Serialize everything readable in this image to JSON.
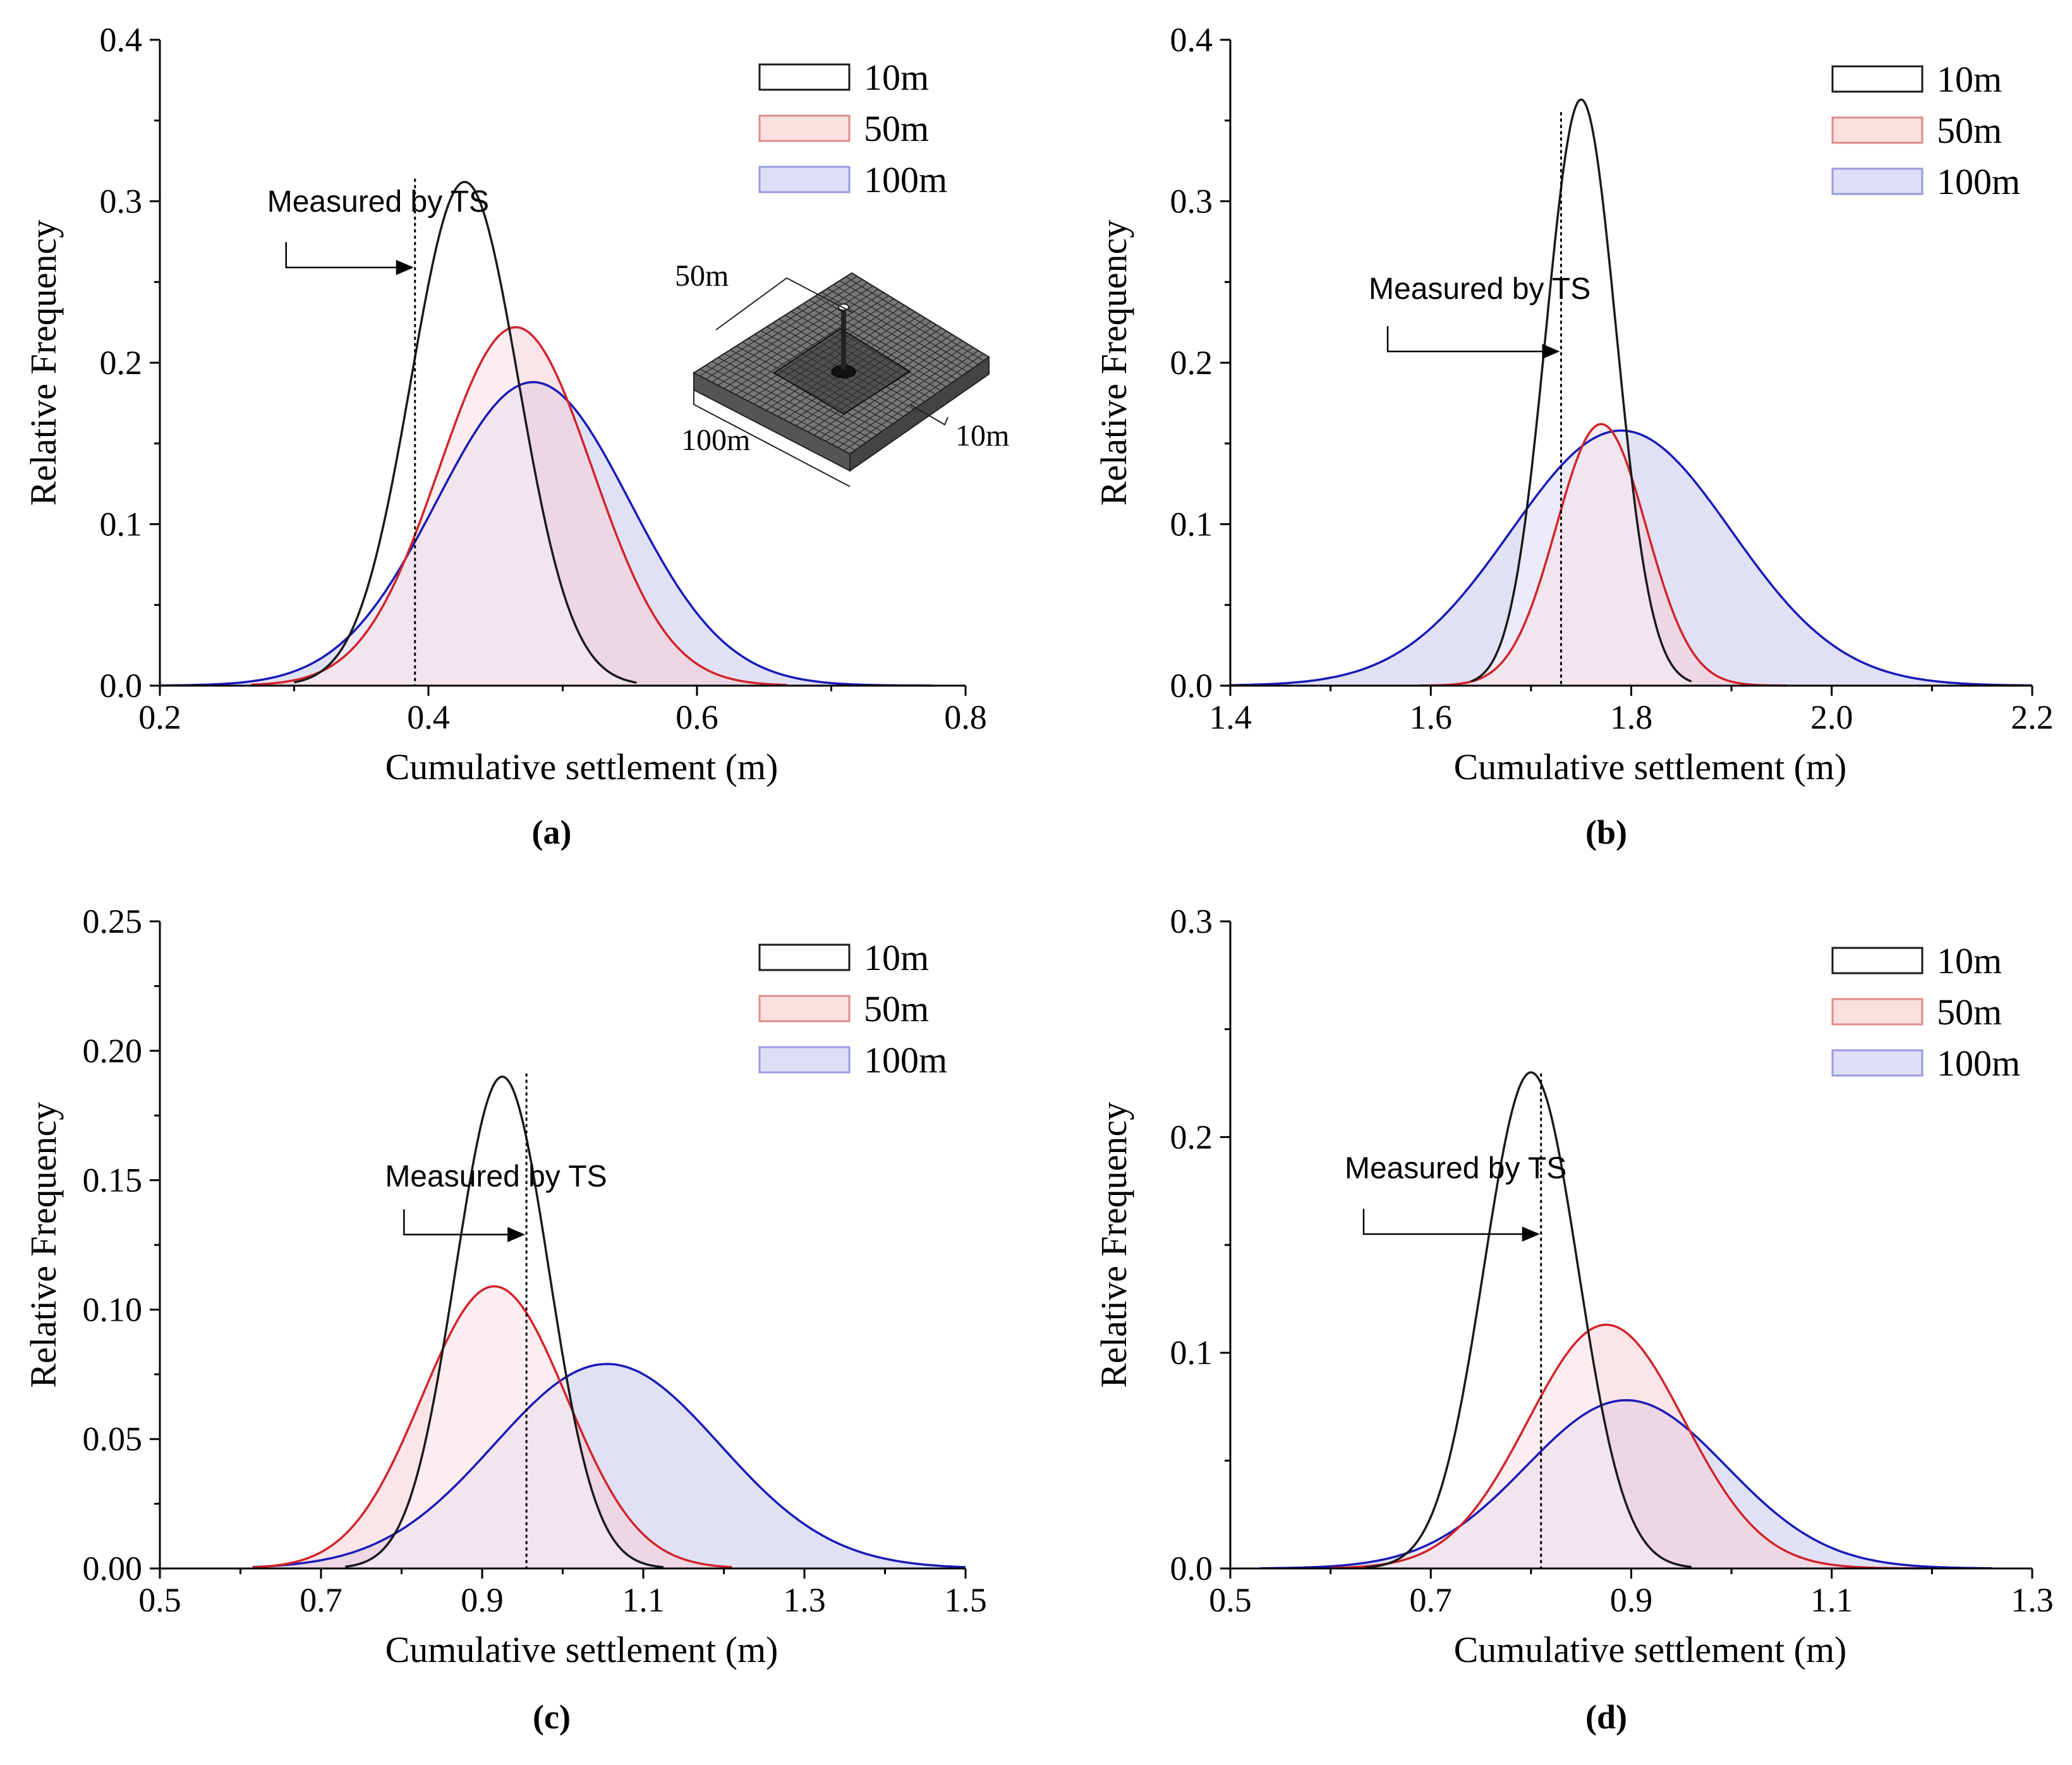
{
  "panels": [
    {
      "id": "a",
      "chart_data": {
        "type": "area",
        "panel_label": "(a)",
        "xlabel": "Cumulative settlement (m)",
        "ylabel": "Relative Frequency",
        "xlim": [
          0.2,
          0.8
        ],
        "ylim": [
          0,
          0.4
        ],
        "xticks": [
          0.2,
          0.4,
          0.6,
          0.8
        ],
        "xtick_labels": [
          "0.2",
          "0.4",
          "0.6",
          "0.8"
        ],
        "yticks": [
          0,
          0.1,
          0.2,
          0.3,
          0.4
        ],
        "ytick_labels": [
          "0.0",
          "0.1",
          "0.2",
          "0.3",
          "0.4"
        ],
        "legend": [
          {
            "label": "10m",
            "stroke": "#1a1a1a",
            "fill": "#ffffff"
          },
          {
            "label": "50m",
            "stroke": "#e08a8a",
            "fill": "#fbe0e0"
          },
          {
            "label": "100m",
            "stroke": "#9a9ae0",
            "fill": "#dedef6"
          }
        ],
        "series": [
          {
            "name": "10m",
            "type": "normal",
            "peak": 0.312,
            "mean": 0.427,
            "sd": 0.04,
            "range": [
              0.3,
              0.555
            ],
            "color": "#1a1a1a",
            "fill": "#ffffff"
          },
          {
            "name": "50m",
            "type": "normal",
            "peak": 0.222,
            "mean": 0.465,
            "sd": 0.057,
            "range": [
              0.268,
              0.667
            ],
            "color": "#d2232a",
            "fill": "#f7cfd6"
          },
          {
            "name": "100m",
            "type": "normal",
            "peak": 0.188,
            "mean": 0.478,
            "sd": 0.072,
            "range": [
              0.2,
              0.775
            ],
            "color": "#1a1ab8",
            "fill": "#c8c8ee"
          }
        ],
        "measured": {
          "x": 0.39,
          "label": "Measured by TS",
          "arrow_y": 0.259,
          "label_y": 0.299,
          "arrow_from_x": 0.294
        },
        "inset": {
          "label_50": "50m",
          "label_100": "100m",
          "label_10": "10m"
        }
      }
    },
    {
      "id": "b",
      "chart_data": {
        "type": "area",
        "panel_label": "(b)",
        "xlabel": "Cumulative settlement (m)",
        "ylabel": "Relative Frequency",
        "xlim": [
          1.4,
          2.2
        ],
        "ylim": [
          0,
          0.4
        ],
        "xticks": [
          1.4,
          1.6,
          1.8,
          2.0,
          2.2
        ],
        "xtick_labels": [
          "1.4",
          "1.6",
          "1.8",
          "2.0",
          "2.2"
        ],
        "yticks": [
          0,
          0.1,
          0.2,
          0.3,
          0.4
        ],
        "ytick_labels": [
          "0.0",
          "0.1",
          "0.2",
          "0.3",
          "0.4"
        ],
        "legend": [
          {
            "label": "10m",
            "stroke": "#1a1a1a",
            "fill": "#ffffff"
          },
          {
            "label": "50m",
            "stroke": "#e08a8a",
            "fill": "#fbe0e0"
          },
          {
            "label": "100m",
            "stroke": "#9a9ae0",
            "fill": "#dedef6"
          }
        ],
        "series": [
          {
            "name": "10m",
            "type": "normal",
            "peak": 0.363,
            "mean": 1.75,
            "sd": 0.035,
            "range": [
              1.64,
              1.86
            ],
            "color": "#1a1a1a",
            "fill": "#ffffff"
          },
          {
            "name": "50m",
            "type": "normal",
            "peak": 0.162,
            "mean": 1.77,
            "sd": 0.045,
            "range": [
              1.59,
              1.955
            ],
            "color": "#d2232a",
            "fill": "#f7cfd6"
          },
          {
            "name": "100m",
            "type": "normal",
            "peak": 0.158,
            "mean": 1.79,
            "sd": 0.11,
            "range": [
              1.4,
              2.2
            ],
            "color": "#1a1ab8",
            "fill": "#c8c8ee"
          }
        ],
        "measured": {
          "x": 1.73,
          "label": "Measured by TS",
          "arrow_y": 0.207,
          "label_y": 0.245,
          "arrow_from_x": 1.557
        }
      }
    },
    {
      "id": "c",
      "chart_data": {
        "type": "area",
        "panel_label": "(c)",
        "xlabel": "Cumulative settlement (m)",
        "ylabel": "Relative Frequency",
        "xlim": [
          0.5,
          1.5
        ],
        "ylim": [
          0,
          0.25
        ],
        "xticks": [
          0.5,
          0.7,
          0.9,
          1.1,
          1.3,
          1.5
        ],
        "xtick_labels": [
          "0.5",
          "0.7",
          "0.9",
          "1.1",
          "1.3",
          "1.5"
        ],
        "yticks": [
          0,
          0.05,
          0.1,
          0.15,
          0.2,
          0.25
        ],
        "ytick_labels": [
          "0.00",
          "0.05",
          "0.10",
          "0.15",
          "0.20",
          "0.25"
        ],
        "legend": [
          {
            "label": "10m",
            "stroke": "#1a1a1a",
            "fill": "#ffffff"
          },
          {
            "label": "50m",
            "stroke": "#e08a8a",
            "fill": "#fbe0e0"
          },
          {
            "label": "100m",
            "stroke": "#9a9ae0",
            "fill": "#dedef6"
          }
        ],
        "series": [
          {
            "name": "10m",
            "type": "normal",
            "peak": 0.19,
            "mean": 0.925,
            "sd": 0.058,
            "range": [
              0.73,
              1.125
            ],
            "color": "#1a1a1a",
            "fill": "#ffffff"
          },
          {
            "name": "50m",
            "type": "normal",
            "peak": 0.109,
            "mean": 0.915,
            "sd": 0.09,
            "range": [
              0.615,
              1.21
            ],
            "color": "#d2232a",
            "fill": "#f7cfd6"
          },
          {
            "name": "100m",
            "type": "normal",
            "peak": 0.079,
            "mean": 1.055,
            "sd": 0.14,
            "range": [
              0.615,
              1.5
            ],
            "color": "#1a1ab8",
            "fill": "#c8c8ee"
          }
        ],
        "measured": {
          "x": 0.955,
          "label": "Measured by TS",
          "arrow_y": 0.129,
          "label_y": 0.151,
          "arrow_from_x": 0.803
        }
      }
    },
    {
      "id": "d",
      "chart_data": {
        "type": "area",
        "panel_label": "(d)",
        "xlabel": "Cumulative settlement (m)",
        "ylabel": "Relative Frequency",
        "xlim": [
          0.5,
          1.3
        ],
        "ylim": [
          0,
          0.3
        ],
        "xticks": [
          0.5,
          0.7,
          0.9,
          1.1,
          1.3
        ],
        "xtick_labels": [
          "0.5",
          "0.7",
          "0.9",
          "1.1",
          "1.3"
        ],
        "yticks": [
          0,
          0.1,
          0.2,
          0.3
        ],
        "ytick_labels": [
          "0.0",
          "0.1",
          "0.2",
          "0.3"
        ],
        "legend": [
          {
            "label": "10m",
            "stroke": "#1a1a1a",
            "fill": "#ffffff"
          },
          {
            "label": "50m",
            "stroke": "#e08a8a",
            "fill": "#fbe0e0"
          },
          {
            "label": "100m",
            "stroke": "#9a9ae0",
            "fill": "#dedef6"
          }
        ],
        "series": [
          {
            "name": "10m",
            "type": "normal",
            "peak": 0.23,
            "mean": 0.8,
            "sd": 0.047,
            "range": [
              0.635,
              0.96
            ],
            "color": "#1a1a1a",
            "fill": "#ffffff"
          },
          {
            "name": "50m",
            "type": "normal",
            "peak": 0.113,
            "mean": 0.875,
            "sd": 0.078,
            "range": [
              0.6,
              1.19
            ],
            "color": "#d2232a",
            "fill": "#f7cfd6"
          },
          {
            "name": "100m",
            "type": "normal",
            "peak": 0.078,
            "mean": 0.895,
            "sd": 0.1,
            "range": [
              0.53,
              1.26
            ],
            "color": "#1a1ab8",
            "fill": "#c8c8ee"
          }
        ],
        "measured": {
          "x": 0.81,
          "label": "Measured by TS",
          "arrow_y": 0.155,
          "label_y": 0.185,
          "arrow_from_x": 0.633
        }
      }
    }
  ]
}
